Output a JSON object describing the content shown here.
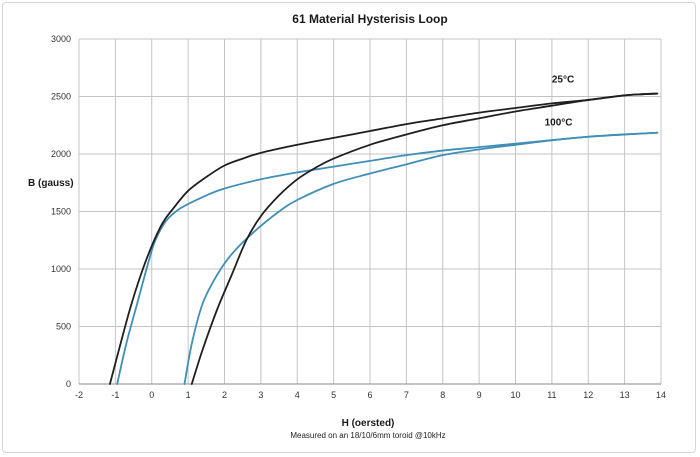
{
  "chart_data": {
    "type": "line",
    "title": "61 Material Hysterisis Loop",
    "xlabel": "H (oersted)",
    "ylabel": "B (gauss)",
    "note": "Measured on an 18/10/6mm toroid @10kHz",
    "xlim": [
      -2,
      14
    ],
    "ylim": [
      0,
      3000
    ],
    "xticks": [
      "-2",
      "-1",
      "0",
      "1",
      "2",
      "3",
      "4",
      "5",
      "6",
      "7",
      "8",
      "9",
      "10",
      "11",
      "12",
      "13",
      "14"
    ],
    "yticks": [
      "0",
      "500",
      "1000",
      "1500",
      "2000",
      "2500",
      "3000"
    ],
    "grid": true,
    "legend": "none",
    "series": [
      {
        "name": "25°C",
        "color": "#1f1f1f",
        "branches": [
          [
            [
              -1.15,
              0
            ],
            [
              -0.9,
              300
            ],
            [
              -0.6,
              650
            ],
            [
              -0.3,
              950
            ],
            [
              0,
              1200
            ],
            [
              0.3,
              1400
            ],
            [
              0.6,
              1530
            ],
            [
              1,
              1680
            ],
            [
              1.5,
              1800
            ],
            [
              2,
              1900
            ],
            [
              2.5,
              1960
            ],
            [
              3,
              2010
            ],
            [
              4,
              2080
            ],
            [
              5,
              2140
            ],
            [
              6,
              2200
            ],
            [
              7,
              2260
            ],
            [
              8,
              2310
            ],
            [
              9,
              2360
            ],
            [
              10,
              2400
            ],
            [
              11,
              2440
            ],
            [
              12,
              2470
            ],
            [
              13,
              2510
            ],
            [
              13.5,
              2520
            ],
            [
              13.9,
              2525
            ]
          ],
          [
            [
              1.1,
              0
            ],
            [
              1.4,
              300
            ],
            [
              1.8,
              650
            ],
            [
              2.2,
              950
            ],
            [
              2.6,
              1250
            ],
            [
              3,
              1460
            ],
            [
              3.5,
              1640
            ],
            [
              4,
              1780
            ],
            [
              4.5,
              1880
            ],
            [
              5,
              1960
            ],
            [
              6,
              2080
            ],
            [
              7,
              2170
            ],
            [
              8,
              2250
            ],
            [
              9,
              2310
            ],
            [
              10,
              2370
            ],
            [
              11,
              2420
            ],
            [
              12,
              2470
            ],
            [
              13,
              2510
            ],
            [
              13.5,
              2520
            ],
            [
              13.9,
              2525
            ]
          ]
        ]
      },
      {
        "name": "100°C",
        "color": "#3f8fb7",
        "branches": [
          [
            [
              -0.95,
              0
            ],
            [
              -0.7,
              350
            ],
            [
              -0.4,
              700
            ],
            [
              -0.1,
              1050
            ],
            [
              0.1,
              1250
            ],
            [
              0.4,
              1420
            ],
            [
              0.8,
              1530
            ],
            [
              1.5,
              1640
            ],
            [
              2,
              1700
            ],
            [
              3,
              1780
            ],
            [
              4,
              1840
            ],
            [
              5,
              1890
            ],
            [
              6,
              1940
            ],
            [
              7,
              1990
            ],
            [
              8,
              2030
            ],
            [
              9,
              2060
            ],
            [
              10,
              2090
            ],
            [
              11,
              2120
            ],
            [
              12,
              2150
            ],
            [
              13,
              2170
            ],
            [
              13.9,
              2185
            ]
          ],
          [
            [
              0.9,
              0
            ],
            [
              1.1,
              350
            ],
            [
              1.4,
              700
            ],
            [
              1.8,
              950
            ],
            [
              2.2,
              1130
            ],
            [
              2.8,
              1320
            ],
            [
              3.5,
              1500
            ],
            [
              4,
              1600
            ],
            [
              5,
              1740
            ],
            [
              6,
              1830
            ],
            [
              7,
              1910
            ],
            [
              8,
              1990
            ],
            [
              9,
              2040
            ],
            [
              10,
              2080
            ],
            [
              11,
              2120
            ],
            [
              12,
              2150
            ],
            [
              13,
              2170
            ],
            [
              13.9,
              2185
            ]
          ]
        ]
      }
    ],
    "annotations": [
      {
        "text": "25°C",
        "x": 11,
        "y": 2620
      },
      {
        "text": "100°C",
        "x": 10.8,
        "y": 2250
      }
    ]
  }
}
